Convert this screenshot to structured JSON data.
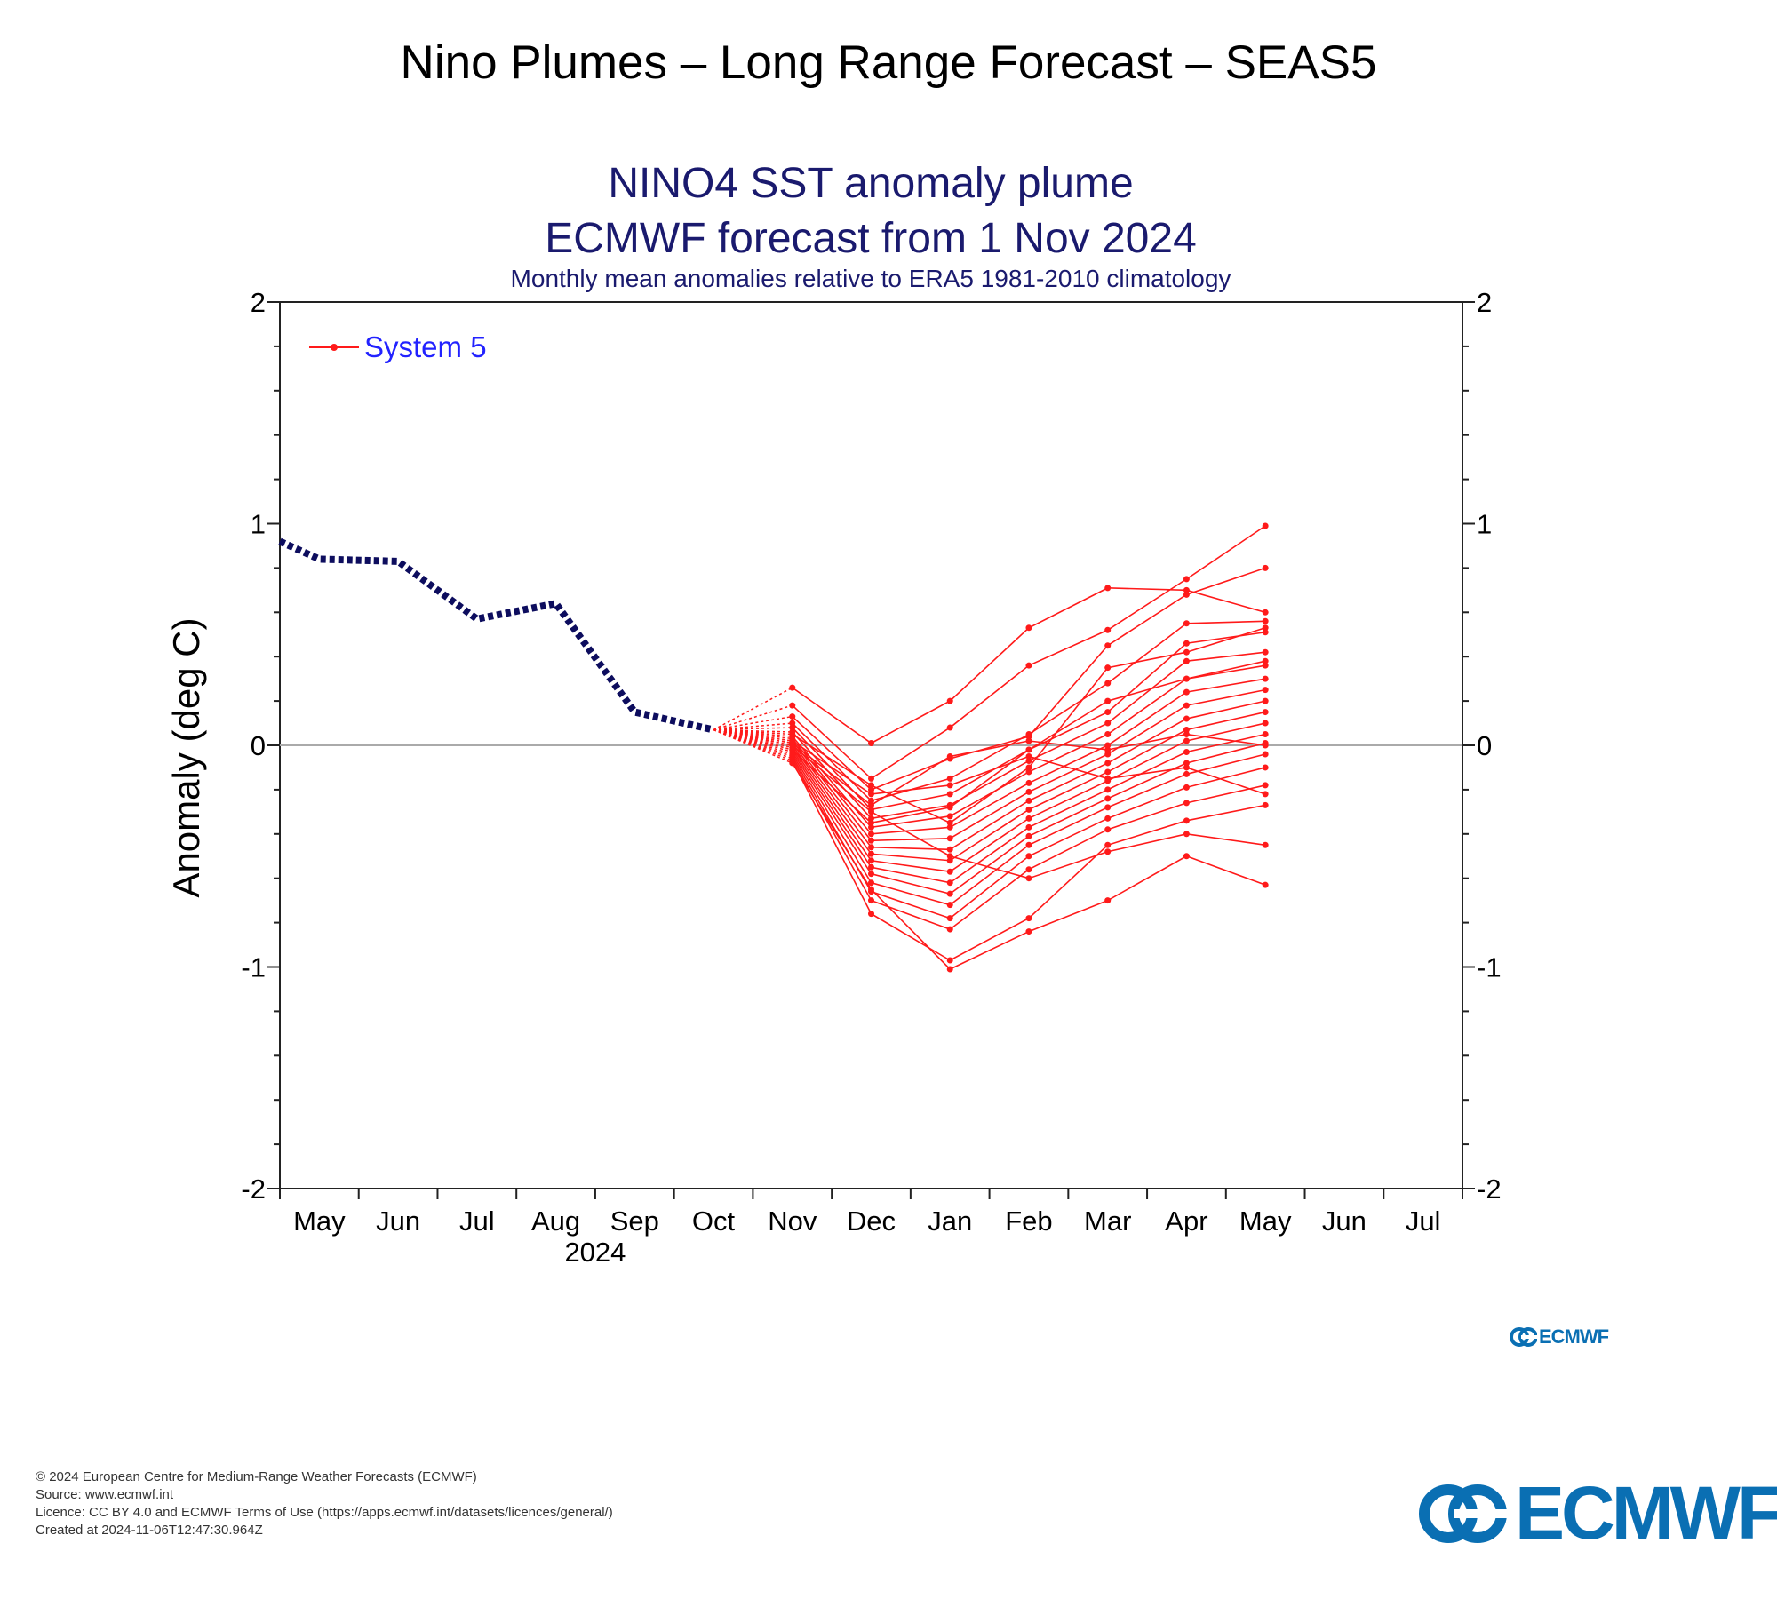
{
  "page_title": "Nino Plumes – Long Range Forecast – SEAS5",
  "footer": {
    "copyright": "© 2024 European Centre for Medium-Range Weather Forecasts (ECMWF)",
    "source": "Source: www.ecmwf.int",
    "licence": "Licence: CC BY 4.0 and ECMWF Terms of Use (https://apps.ecmwf.int/datasets/licences/general/)",
    "created": "Created at 2024-11-06T12:47:30.964Z"
  },
  "logos": {
    "small": "ECMWF",
    "large": "ECMWF",
    "color": "#0a6fb3"
  },
  "colors": {
    "title": "#1a1a6e",
    "forecast": "#ff1a1a",
    "observed": "#0d0d5e",
    "legend_text": "#2222ff"
  },
  "chart_data": {
    "type": "line",
    "title": "NINO4 SST anomaly plume",
    "subtitle": "ECMWF forecast from 1 Nov 2024",
    "subtitle2": "Monthly mean anomalies relative to ERA5 1981-2010 climatology",
    "ylabel": "Anomaly (deg C)",
    "ylim": [
      -2,
      2
    ],
    "yticks": [
      "-2",
      "-1",
      "0",
      "1",
      "2"
    ],
    "x_categories": [
      "May",
      "Jun",
      "Jul",
      "Aug",
      "Sep",
      "Oct",
      "Nov",
      "Dec",
      "Jan",
      "Feb",
      "Mar",
      "Apr",
      "May",
      "Jun",
      "Jul"
    ],
    "year_label": "2024",
    "grid": false,
    "zero_line": true,
    "legend": {
      "position": "top-left",
      "entries": [
        "System 5"
      ]
    },
    "observed": {
      "style": "dotted",
      "months": [
        "Apr",
        "May",
        "Jun",
        "Jul",
        "Aug",
        "Sep",
        "Oct"
      ],
      "values": [
        0.92,
        0.84,
        0.83,
        0.57,
        0.64,
        0.15,
        0.07
      ]
    },
    "forecast": {
      "series_label": "System 5",
      "start_value": 0.07,
      "months": [
        "Nov",
        "Dec",
        "Jan",
        "Feb",
        "Mar",
        "Apr",
        "May"
      ],
      "members": [
        [
          0.26,
          0.01,
          0.2,
          0.53,
          0.71,
          0.7,
          0.6
        ],
        [
          0.18,
          -0.15,
          0.08,
          0.36,
          0.52,
          0.75,
          0.99
        ],
        [
          0.13,
          -0.2,
          -0.06,
          0.04,
          0.45,
          0.68,
          0.8
        ],
        [
          0.1,
          -0.25,
          -0.15,
          0.05,
          0.28,
          0.55,
          0.56
        ],
        [
          0.08,
          -0.29,
          -0.22,
          -0.02,
          0.15,
          0.46,
          0.51
        ],
        [
          0.06,
          -0.33,
          -0.27,
          -0.07,
          0.1,
          0.38,
          0.42
        ],
        [
          0.04,
          -0.37,
          -0.32,
          -0.12,
          0.05,
          0.3,
          0.36
        ],
        [
          0.03,
          -0.4,
          -0.37,
          -0.17,
          0.0,
          0.24,
          0.3
        ],
        [
          0.02,
          -0.43,
          -0.42,
          -0.21,
          -0.04,
          0.18,
          0.25
        ],
        [
          0.01,
          -0.46,
          -0.47,
          -0.25,
          -0.08,
          0.12,
          0.2
        ],
        [
          0.0,
          -0.49,
          -0.52,
          -0.29,
          -0.12,
          0.07,
          0.15
        ],
        [
          -0.01,
          -0.52,
          -0.57,
          -0.33,
          -0.16,
          0.02,
          0.1
        ],
        [
          -0.02,
          -0.55,
          -0.62,
          -0.37,
          -0.2,
          -0.03,
          0.05
        ],
        [
          -0.03,
          -0.58,
          -0.67,
          -0.41,
          -0.24,
          -0.08,
          0.01
        ],
        [
          -0.04,
          -0.62,
          -0.72,
          -0.45,
          -0.28,
          -0.13,
          -0.04
        ],
        [
          -0.05,
          -0.66,
          -0.78,
          -0.5,
          -0.33,
          -0.19,
          -0.1
        ],
        [
          -0.06,
          -0.7,
          -0.83,
          -0.56,
          -0.38,
          -0.26,
          -0.18
        ],
        [
          -0.07,
          -0.76,
          -0.97,
          -0.78,
          -0.45,
          -0.34,
          -0.27
        ],
        [
          -0.08,
          -0.65,
          -1.01,
          -0.84,
          -0.7,
          -0.5,
          -0.63
        ],
        [
          0.0,
          -0.3,
          -0.5,
          -0.6,
          -0.48,
          -0.4,
          -0.45
        ],
        [
          0.05,
          -0.18,
          -0.35,
          -0.1,
          0.35,
          0.42,
          0.53
        ],
        [
          -0.02,
          -0.35,
          -0.28,
          -0.02,
          0.2,
          0.3,
          0.38
        ],
        [
          0.01,
          -0.27,
          -0.05,
          0.02,
          -0.02,
          0.05,
          0.0
        ],
        [
          0.02,
          -0.22,
          -0.18,
          -0.05,
          -0.15,
          -0.1,
          -0.22
        ]
      ]
    }
  }
}
